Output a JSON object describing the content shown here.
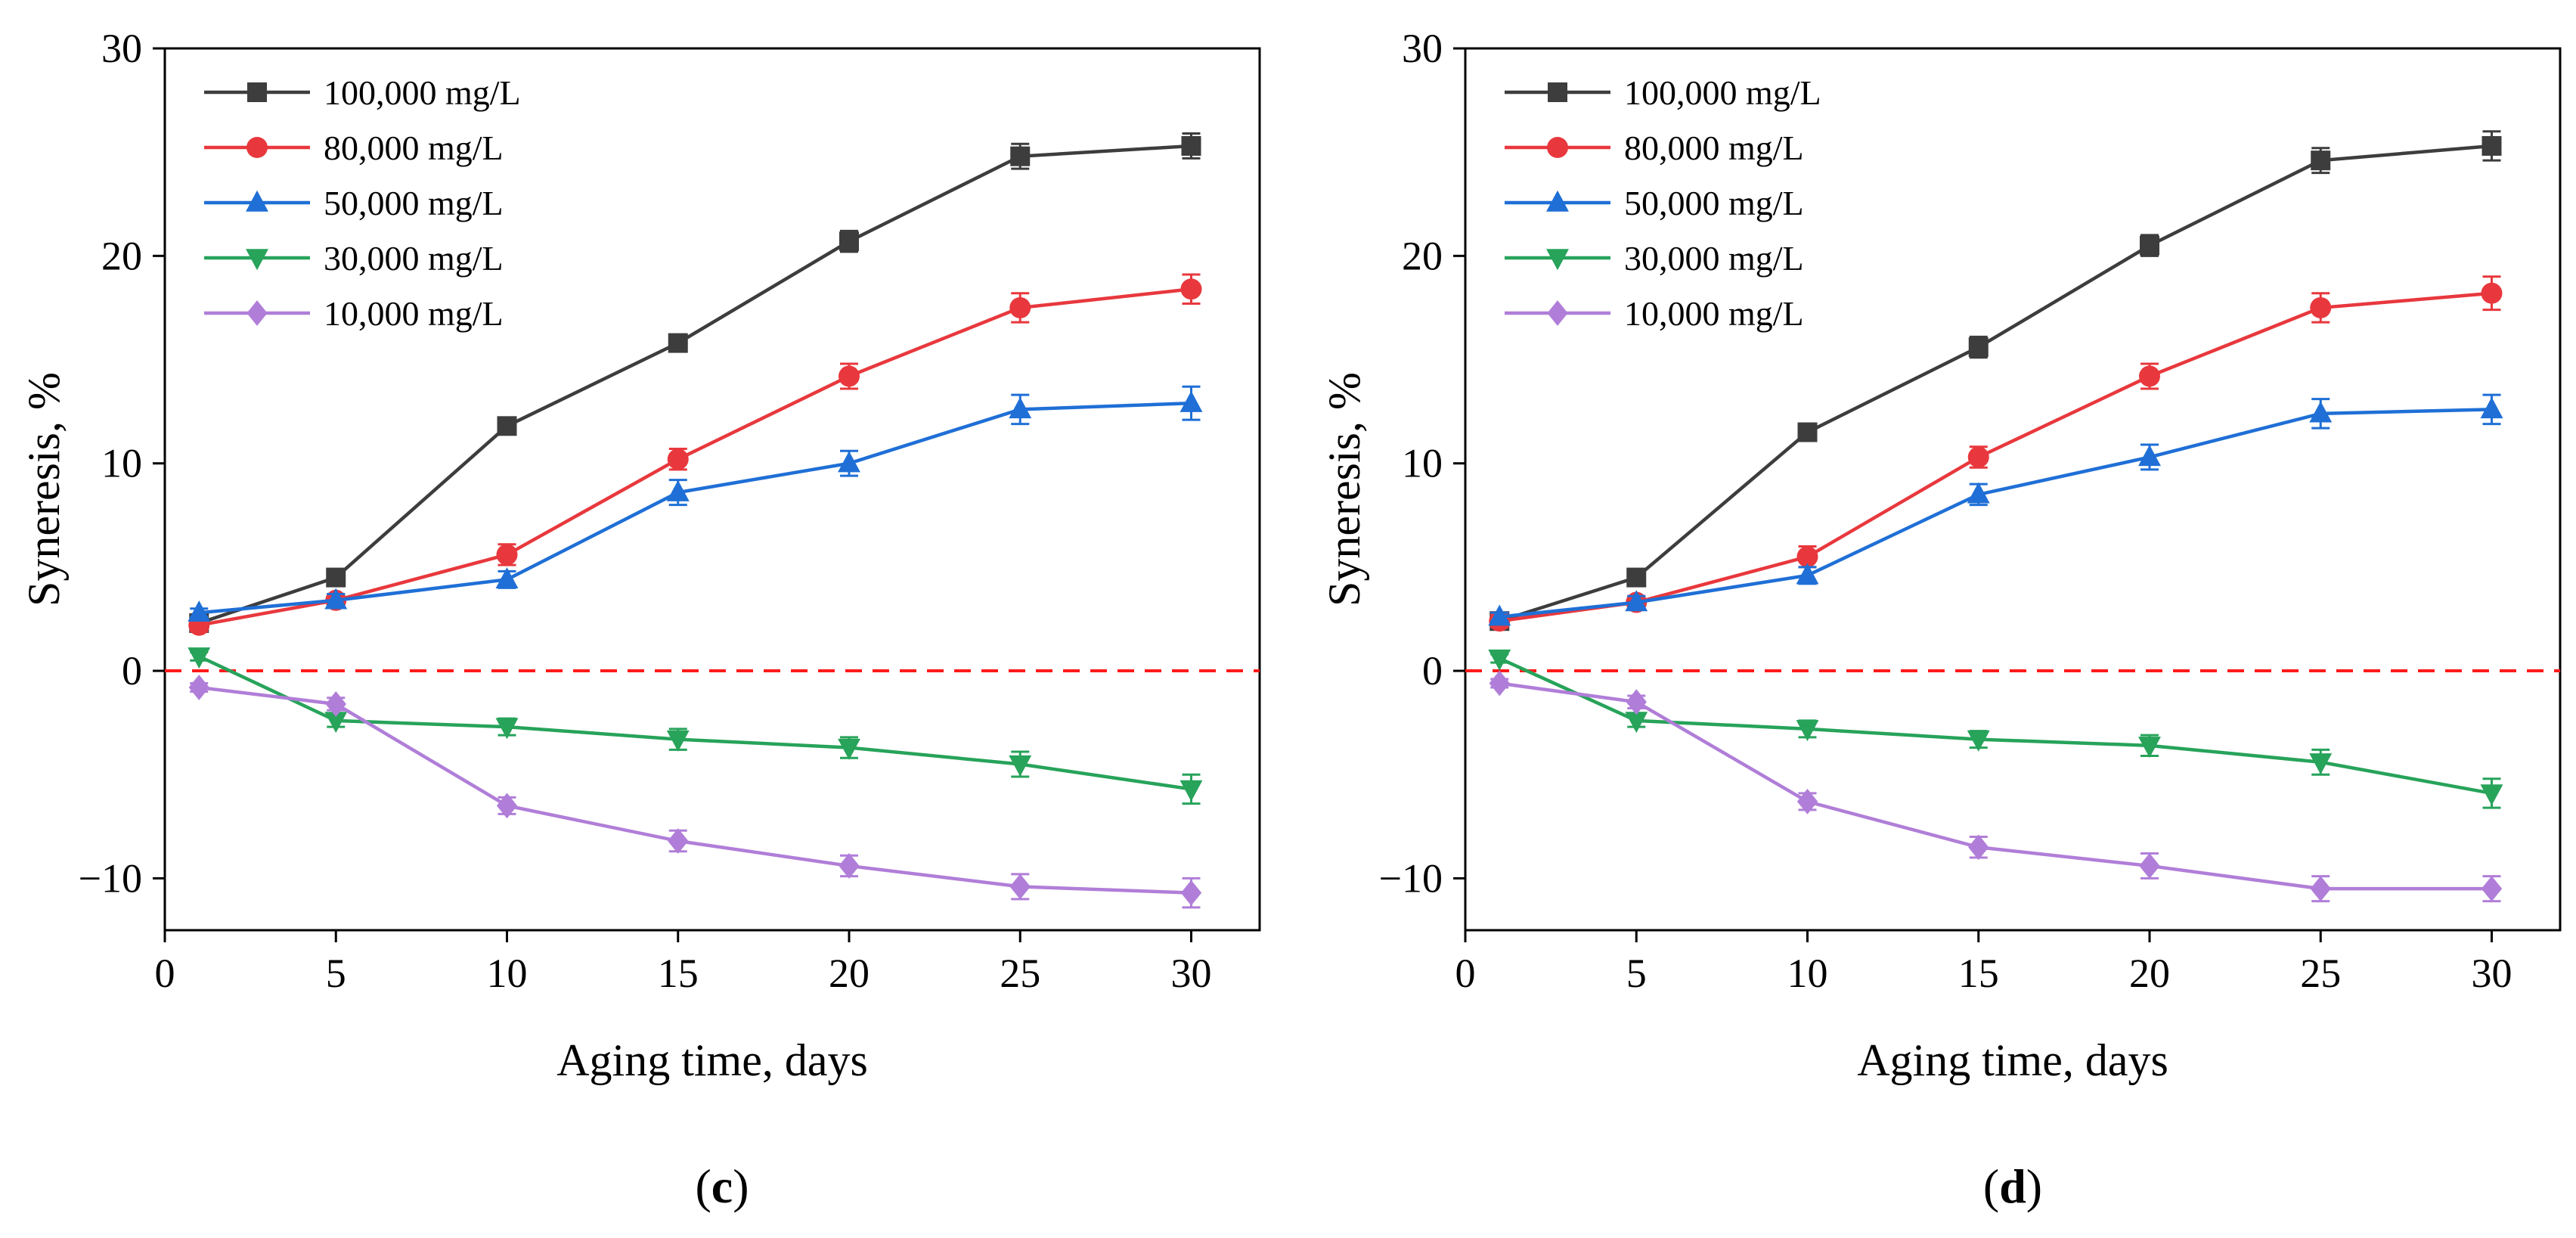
{
  "chart_data": [
    {
      "type": "line",
      "panel": "c",
      "xlabel": "Aging time, days",
      "ylabel": "Syneresis, %",
      "xlim": [
        0,
        32
      ],
      "ylim": [
        -12.5,
        30
      ],
      "xticks": [
        0,
        5,
        10,
        15,
        20,
        25,
        30
      ],
      "yticks": [
        -10,
        0,
        10,
        20,
        30
      ],
      "x": [
        1,
        5,
        10,
        15,
        20,
        25,
        30
      ],
      "reference_line": {
        "y": 0,
        "style": "dashed",
        "color": "#ff1a1a"
      },
      "legend_position": "top-left",
      "series": [
        {
          "name": "100,000 mg/L",
          "color": "#3d3d3d",
          "marker": "square",
          "values": [
            2.3,
            4.5,
            11.8,
            15.8,
            20.7,
            24.8,
            25.3
          ],
          "errors": [
            0.3,
            0.3,
            0.4,
            0.4,
            0.5,
            0.6,
            0.6
          ]
        },
        {
          "name": "80,000 mg/L",
          "color": "#e8383d",
          "marker": "circle",
          "values": [
            2.2,
            3.4,
            5.6,
            10.2,
            14.2,
            17.5,
            18.4
          ],
          "errors": [
            0.3,
            0.3,
            0.5,
            0.5,
            0.6,
            0.7,
            0.7
          ]
        },
        {
          "name": "50,000 mg/L",
          "color": "#1f6fd6",
          "marker": "triangle-up",
          "values": [
            2.8,
            3.4,
            4.4,
            8.6,
            10.0,
            12.6,
            12.9
          ],
          "errors": [
            0.2,
            0.3,
            0.4,
            0.6,
            0.6,
            0.7,
            0.8
          ]
        },
        {
          "name": "30,000 mg/L",
          "color": "#27a35a",
          "marker": "triangle-down",
          "values": [
            0.7,
            -2.4,
            -2.7,
            -3.3,
            -3.7,
            -4.5,
            -5.7
          ],
          "errors": [
            0.2,
            0.3,
            0.4,
            0.5,
            0.5,
            0.6,
            0.7
          ]
        },
        {
          "name": "10,000 mg/L",
          "color": "#b07ed8",
          "marker": "diamond",
          "values": [
            -0.8,
            -1.6,
            -6.5,
            -8.2,
            -9.4,
            -10.4,
            -10.7
          ],
          "errors": [
            0.2,
            0.3,
            0.4,
            0.5,
            0.5,
            0.6,
            0.7
          ]
        }
      ]
    },
    {
      "type": "line",
      "panel": "d",
      "xlabel": "Aging time, days",
      "ylabel": "Syneresis, %",
      "xlim": [
        0,
        32
      ],
      "ylim": [
        -12.5,
        30
      ],
      "xticks": [
        0,
        5,
        10,
        15,
        20,
        25,
        30
      ],
      "yticks": [
        -10,
        0,
        10,
        20,
        30
      ],
      "x": [
        1,
        5,
        10,
        15,
        20,
        25,
        30
      ],
      "reference_line": {
        "y": 0,
        "style": "dashed",
        "color": "#ff1a1a"
      },
      "legend_position": "top-left",
      "series": [
        {
          "name": "100,000 mg/L",
          "color": "#3d3d3d",
          "marker": "square",
          "values": [
            2.4,
            4.5,
            11.5,
            15.6,
            20.5,
            24.6,
            25.3
          ],
          "errors": [
            0.3,
            0.3,
            0.4,
            0.5,
            0.5,
            0.6,
            0.7
          ]
        },
        {
          "name": "80,000 mg/L",
          "color": "#e8383d",
          "marker": "circle",
          "values": [
            2.4,
            3.3,
            5.5,
            10.3,
            14.2,
            17.5,
            18.2
          ],
          "errors": [
            0.3,
            0.3,
            0.5,
            0.5,
            0.6,
            0.7,
            0.8
          ]
        },
        {
          "name": "50,000 mg/L",
          "color": "#1f6fd6",
          "marker": "triangle-up",
          "values": [
            2.6,
            3.3,
            4.6,
            8.5,
            10.3,
            12.4,
            12.6
          ],
          "errors": [
            0.2,
            0.3,
            0.4,
            0.5,
            0.6,
            0.7,
            0.7
          ]
        },
        {
          "name": "30,000 mg/L",
          "color": "#27a35a",
          "marker": "triangle-down",
          "values": [
            0.6,
            -2.4,
            -2.8,
            -3.3,
            -3.6,
            -4.4,
            -5.9
          ],
          "errors": [
            0.2,
            0.3,
            0.4,
            0.4,
            0.5,
            0.6,
            0.7
          ]
        },
        {
          "name": "10,000 mg/L",
          "color": "#b07ed8",
          "marker": "diamond",
          "values": [
            -0.6,
            -1.5,
            -6.3,
            -8.5,
            -9.4,
            -10.5,
            -10.5
          ],
          "errors": [
            0.2,
            0.3,
            0.4,
            0.5,
            0.6,
            0.6,
            0.6
          ]
        }
      ]
    }
  ],
  "panels": {
    "c": {
      "open": "(",
      "letter": "c",
      "close": ")"
    },
    "d": {
      "open": "(",
      "letter": "d",
      "close": ")"
    }
  }
}
